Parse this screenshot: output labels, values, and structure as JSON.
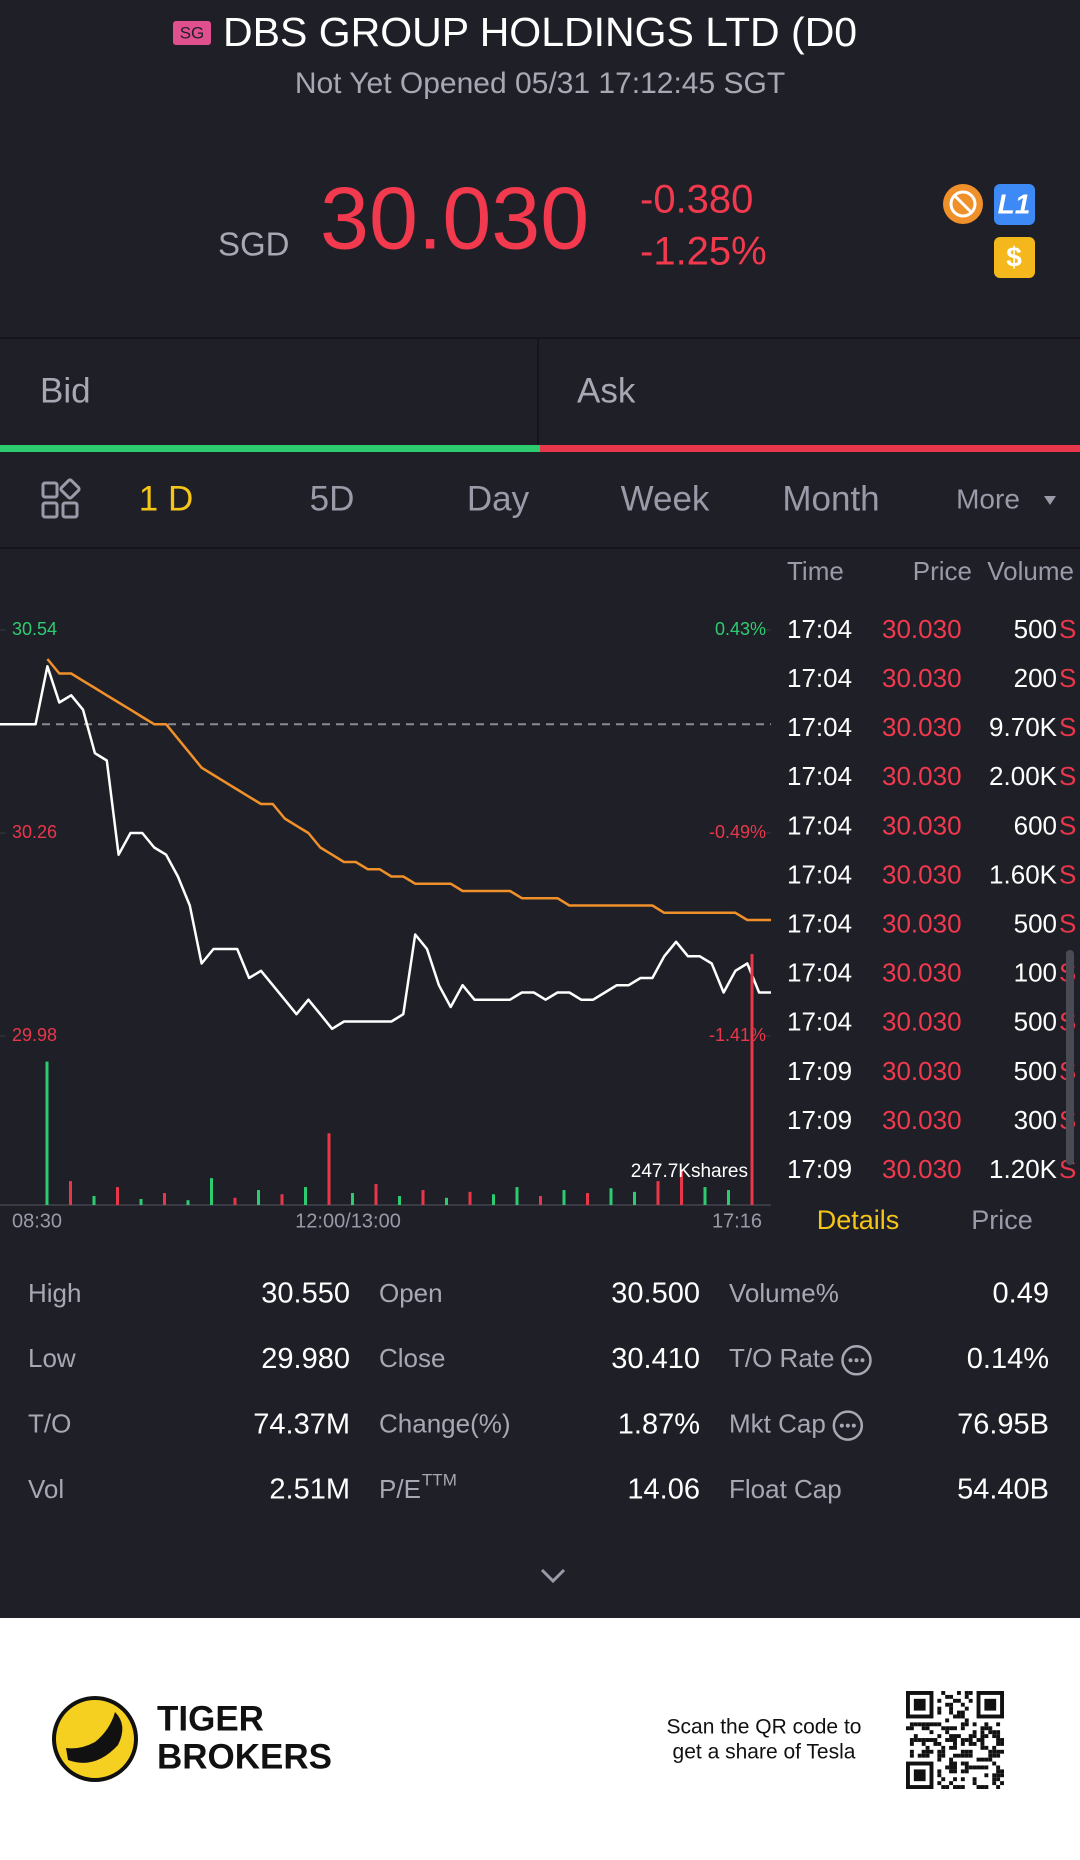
{
  "header": {
    "market_badge": "SG",
    "title": "DBS GROUP HOLDINGS LTD (D0",
    "status": "Not Yet Opened 05/31 17:12:45 SGT"
  },
  "quote": {
    "currency": "SGD",
    "price": "30.030",
    "change": "-0.380",
    "change_pct": "-1.25%",
    "badges": [
      "L1",
      "$"
    ]
  },
  "bid_ask": {
    "bid": "Bid",
    "ask": "Ask"
  },
  "tabs": [
    "1 D",
    "5D",
    "Day",
    "Week",
    "Month",
    "More"
  ],
  "chart_data": {
    "type": "line",
    "ylim": [
      29.98,
      30.54
    ],
    "yticks": [
      30.54,
      30.26,
      29.98
    ],
    "y2lim": [
      -1.41,
      0.43
    ],
    "y2ticks": [
      {
        "value": 0.43,
        "label": "0.43%"
      },
      {
        "value": -0.49,
        "label": "-0.49%"
      },
      {
        "value": -1.41,
        "label": "-1.41%"
      }
    ],
    "baseline": 30.41,
    "xticks": [
      "08:30",
      "12:00/13:00",
      "17:16"
    ],
    "series": [
      {
        "color": "#ffffff",
        "values": [
          30.41,
          30.41,
          30.41,
          30.41,
          30.49,
          30.44,
          30.45,
          30.43,
          30.37,
          30.36,
          30.23,
          30.26,
          30.26,
          30.24,
          30.23,
          30.2,
          30.16,
          30.08,
          30.1,
          30.1,
          30.1,
          30.06,
          30.07,
          30.05,
          30.03,
          30.01,
          30.03,
          30.01,
          29.99,
          30.0,
          30.0,
          30.0,
          30.0,
          30.0,
          30.01,
          30.12,
          30.1,
          30.05,
          30.02,
          30.05,
          30.03,
          30.03,
          30.03,
          30.03,
          30.04,
          30.04,
          30.03,
          30.04,
          30.04,
          30.03,
          30.03,
          30.04,
          30.05,
          30.05,
          30.06,
          30.06,
          30.09,
          30.11,
          30.09,
          30.09,
          30.08,
          30.04,
          30.07,
          30.08,
          30.04,
          30.04
        ]
      },
      {
        "color": "#f0902a",
        "values": [
          null,
          null,
          null,
          null,
          30.5,
          30.48,
          30.48,
          30.47,
          30.46,
          30.45,
          30.44,
          30.43,
          30.42,
          30.41,
          30.41,
          30.39,
          30.37,
          30.35,
          30.34,
          30.33,
          30.32,
          30.31,
          30.3,
          30.3,
          30.28,
          30.27,
          30.26,
          30.24,
          30.23,
          30.22,
          30.22,
          30.21,
          30.21,
          30.2,
          30.2,
          30.19,
          30.19,
          30.19,
          30.19,
          30.18,
          30.18,
          30.18,
          30.18,
          30.18,
          30.17,
          30.17,
          30.17,
          30.17,
          30.16,
          30.16,
          30.16,
          30.16,
          30.16,
          30.16,
          30.16,
          30.16,
          30.15,
          30.15,
          30.15,
          30.15,
          30.15,
          30.15,
          30.15,
          30.14,
          30.14,
          30.14
        ]
      }
    ],
    "volume": {
      "label": "247.7Kshares",
      "max": 247.7,
      "values": [
        240,
        40,
        15,
        30,
        10,
        20,
        8,
        45,
        12,
        25,
        18,
        30,
        120,
        20,
        35,
        15,
        25,
        12,
        22,
        18,
        30,
        15,
        25,
        20,
        28,
        22,
        40,
        60,
        30,
        25,
        420
      ],
      "colors": [
        "#2ecc71",
        "#e8374a",
        "#2ecc71",
        "#e8374a",
        "#2ecc71",
        "#e8374a",
        "#2ecc71",
        "#2ecc71",
        "#e8374a",
        "#2ecc71",
        "#e8374a",
        "#2ecc71",
        "#e8374a",
        "#2ecc71",
        "#e8374a",
        "#2ecc71",
        "#e8374a",
        "#2ecc71",
        "#e8374a",
        "#2ecc71",
        "#2ecc71",
        "#e8374a",
        "#2ecc71",
        "#e8374a",
        "#2ecc71",
        "#2ecc71",
        "#e8374a",
        "#e8374a",
        "#2ecc71",
        "#2ecc71",
        "#e8374a"
      ]
    }
  },
  "trades": {
    "headers": [
      "Time",
      "Price",
      "Volume"
    ],
    "rows": [
      [
        "17:04",
        "30.030",
        "500",
        "S"
      ],
      [
        "17:04",
        "30.030",
        "200",
        "S"
      ],
      [
        "17:04",
        "30.030",
        "9.70K",
        "S"
      ],
      [
        "17:04",
        "30.030",
        "2.00K",
        "S"
      ],
      [
        "17:04",
        "30.030",
        "600",
        "S"
      ],
      [
        "17:04",
        "30.030",
        "1.60K",
        "S"
      ],
      [
        "17:04",
        "30.030",
        "500",
        "S"
      ],
      [
        "17:04",
        "30.030",
        "100",
        "S"
      ],
      [
        "17:04",
        "30.030",
        "500",
        "S"
      ],
      [
        "17:09",
        "30.030",
        "500",
        "S"
      ],
      [
        "17:09",
        "30.030",
        "300",
        "S"
      ],
      [
        "17:09",
        "30.030",
        "1.20K",
        "S"
      ]
    ],
    "tabs": [
      "Details",
      "Price"
    ]
  },
  "stats": {
    "rows": [
      [
        "High",
        "30.550",
        "Open",
        "30.500",
        "Volume%",
        "0.49"
      ],
      [
        "Low",
        "29.980",
        "Close",
        "30.410",
        "T/O Rate",
        "0.14%"
      ],
      [
        "T/O",
        "74.37M",
        "Change(%)",
        "1.87%",
        "Mkt Cap",
        "76.95B"
      ],
      [
        "Vol",
        "2.51M",
        "P/E",
        "14.06",
        "Float Cap",
        "54.40B"
      ]
    ],
    "pe_superscript": "TTM"
  },
  "footer": {
    "brand_line1": "TIGER",
    "brand_line2": "BROKERS",
    "qr_text_1": "Scan the QR code to",
    "qr_text_2": "get a share of Tesla"
  }
}
